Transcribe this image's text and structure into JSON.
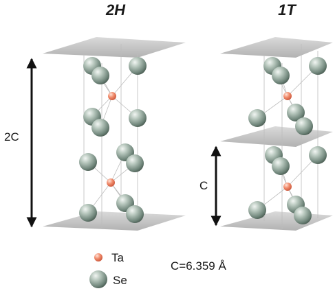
{
  "titles": {
    "left": "2H",
    "right": "1T"
  },
  "dimensions": {
    "left_arrow": "2C",
    "right_arrow": "C"
  },
  "legend": {
    "items": [
      {
        "label": "Ta",
        "color": "#f08a6a",
        "icon": "ta-atom-icon"
      },
      {
        "label": "Se",
        "color": "#8fa79c",
        "icon": "se-atom-icon"
      }
    ]
  },
  "lattice_constant": "C=6.359 Å"
}
